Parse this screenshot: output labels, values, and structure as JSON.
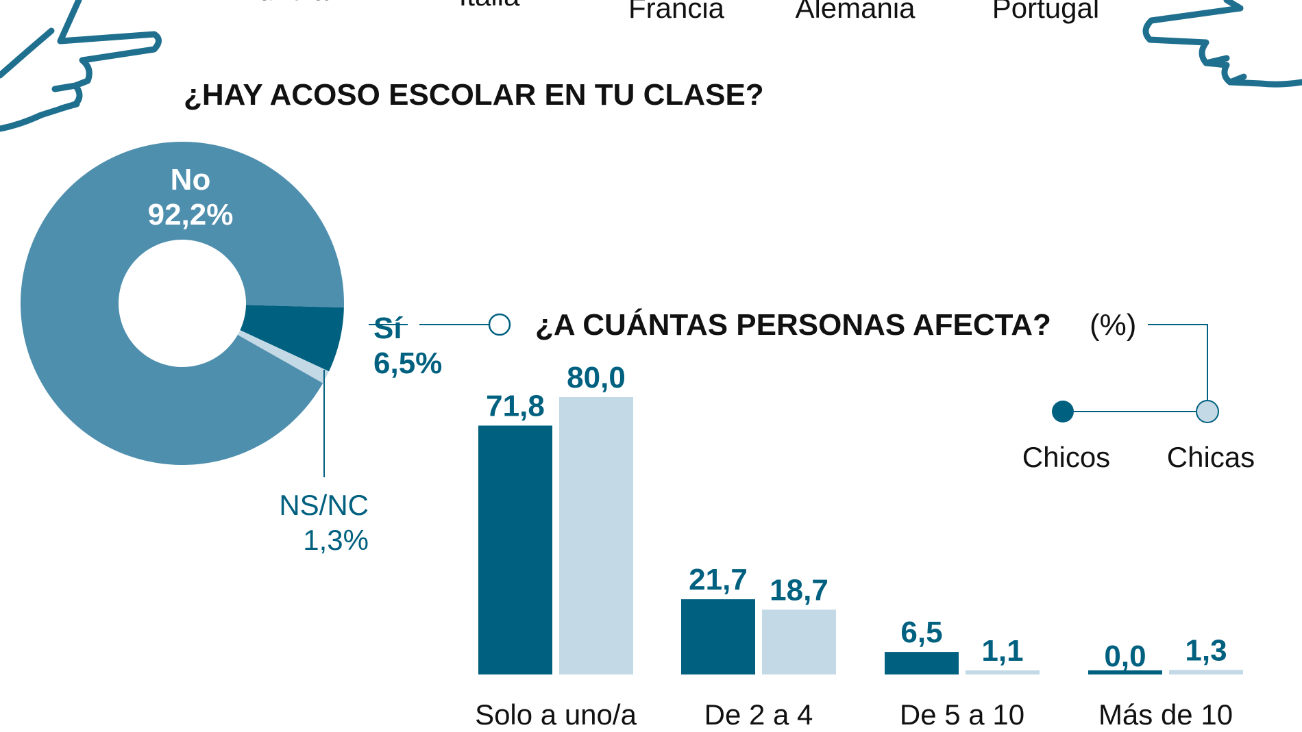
{
  "header_labels": [
    "Mundial",
    "Italia",
    "Francia",
    "Alemania",
    "Portugal"
  ],
  "colors": {
    "no": "#4f8fae",
    "si": "#00607f",
    "nsnc": "#c3d9e6",
    "chicos": "#00607f",
    "chicas": "#c3d9e6",
    "label": "#00607f",
    "hand": "#1f6f8f"
  },
  "icons": [
    "pointing-hand-left-icon",
    "pointing-hand-right-icon"
  ],
  "chart_data": [
    {
      "type": "pie",
      "title": "¿HAY ACOSO ESCOLAR EN TU CLASE?",
      "donut": true,
      "slices": [
        {
          "label": "No",
          "value": 92.2,
          "display": "92,2%"
        },
        {
          "label": "Sí",
          "value": 6.5,
          "display": "6,5%"
        },
        {
          "label": "NS/NC",
          "value": 1.3,
          "display": "1,3%"
        }
      ]
    },
    {
      "type": "bar",
      "title": "¿A CUÁNTAS PERSONAS AFECTA?",
      "unit": "(%)",
      "categories": [
        "Solo a uno/a",
        "De 2 a 4",
        "De 5 a 10",
        "Más de 10"
      ],
      "series": [
        {
          "name": "Chicos",
          "values": [
            71.8,
            21.7,
            6.5,
            0.0
          ],
          "labels": [
            "71,8",
            "21,7",
            "6,5",
            "0,0"
          ]
        },
        {
          "name": "Chicas",
          "values": [
            80.0,
            18.7,
            1.1,
            1.3
          ],
          "labels": [
            "80,0",
            "18,7",
            "1,1",
            "1,3"
          ]
        }
      ],
      "ylim": [
        0,
        100
      ],
      "grid": false,
      "legend": "top-right"
    }
  ]
}
